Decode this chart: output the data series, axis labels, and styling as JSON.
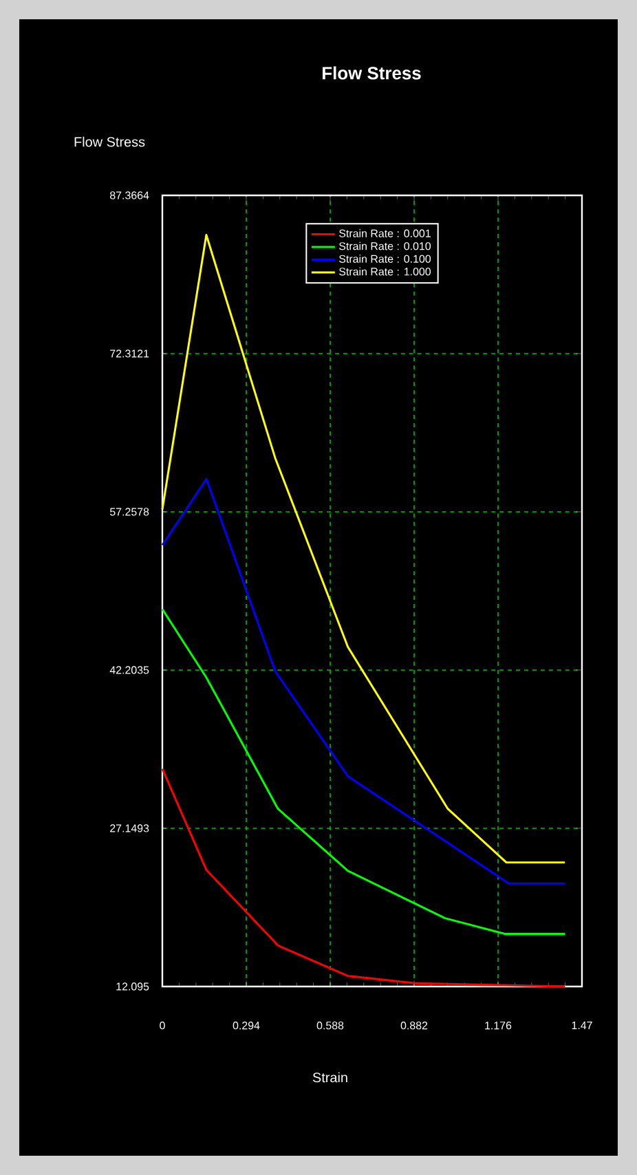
{
  "chart_data": {
    "type": "line",
    "title": "Flow Stress",
    "xlabel": "Strain",
    "ylabel": "Flow Stress",
    "xlim": [
      0,
      1.47
    ],
    "ylim": [
      12.095,
      87.3664
    ],
    "xticks": [
      0,
      0.294,
      0.588,
      0.882,
      1.176,
      1.47
    ],
    "yticks": [
      12.095,
      27.1493,
      42.2035,
      57.2578,
      72.3121,
      87.3664
    ],
    "grid": true,
    "legend": "top",
    "marker": "none",
    "line_style": "solid",
    "series": [
      {
        "name": "Strain Rate : 0.001",
        "color": "#ff0000",
        "x": [
          0,
          0.154,
          0.405,
          0.65,
          0.887,
          1.41
        ],
        "values": [
          32.8,
          23.2,
          16.0,
          13.1,
          12.4,
          12.1
        ]
      },
      {
        "name": "Strain Rate : 0.010",
        "color": "#00ff00",
        "x": [
          0,
          0.154,
          0.405,
          0.65,
          0.99,
          1.2,
          1.41
        ],
        "values": [
          48.0,
          41.5,
          29.0,
          23.1,
          18.6,
          17.1,
          17.1
        ]
      },
      {
        "name": "Strain Rate : 0.100",
        "color": "#0000ff",
        "x": [
          0,
          0.154,
          0.395,
          0.65,
          1.214,
          1.41
        ],
        "values": [
          54.1,
          60.4,
          42.1,
          32.1,
          21.9,
          21.9
        ]
      },
      {
        "name": "Strain Rate : 1.000",
        "color": "#ffff00",
        "x": [
          0,
          0.154,
          0.395,
          0.65,
          1.0,
          1.205,
          1.41
        ],
        "values": [
          57.5,
          83.6,
          62.4,
          44.4,
          29.0,
          23.9,
          23.9
        ]
      }
    ]
  }
}
